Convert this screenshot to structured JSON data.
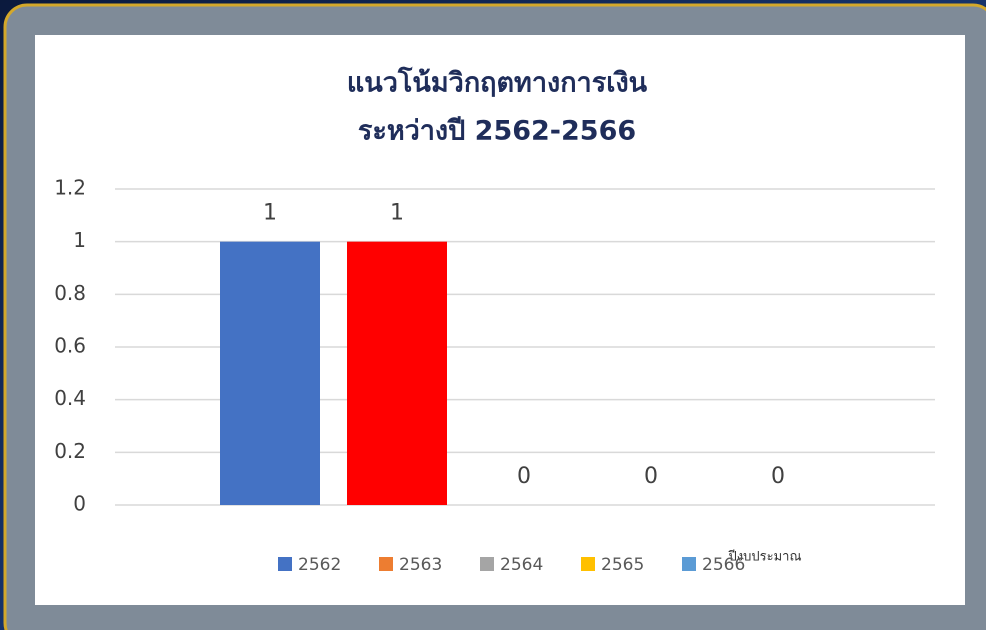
{
  "chart_data": {
    "type": "bar",
    "title": [
      "แนวโน้มวิกฤตทางการเงิน",
      "ระหว่างปี 2562-2566"
    ],
    "x_label": "ปีงบประมาณ",
    "series": [
      {
        "name": "2562",
        "color": "#4472c4",
        "values": [
          1
        ]
      },
      {
        "name": "2563",
        "color": "#ed7d31",
        "bar_color": "#ff0000",
        "values": [
          1
        ]
      },
      {
        "name": "2564",
        "color": "#a5a5a5",
        "values": [
          0
        ]
      },
      {
        "name": "2565",
        "color": "#ffc000",
        "values": [
          0
        ]
      },
      {
        "name": "2566",
        "color": "#5b9bd5",
        "values": [
          0
        ]
      }
    ],
    "ylim": [
      0,
      1.2
    ],
    "yticks": [
      0,
      0.2,
      0.4,
      0.6,
      0.8,
      1,
      1.2
    ],
    "grid": true,
    "legend": "bottom"
  }
}
